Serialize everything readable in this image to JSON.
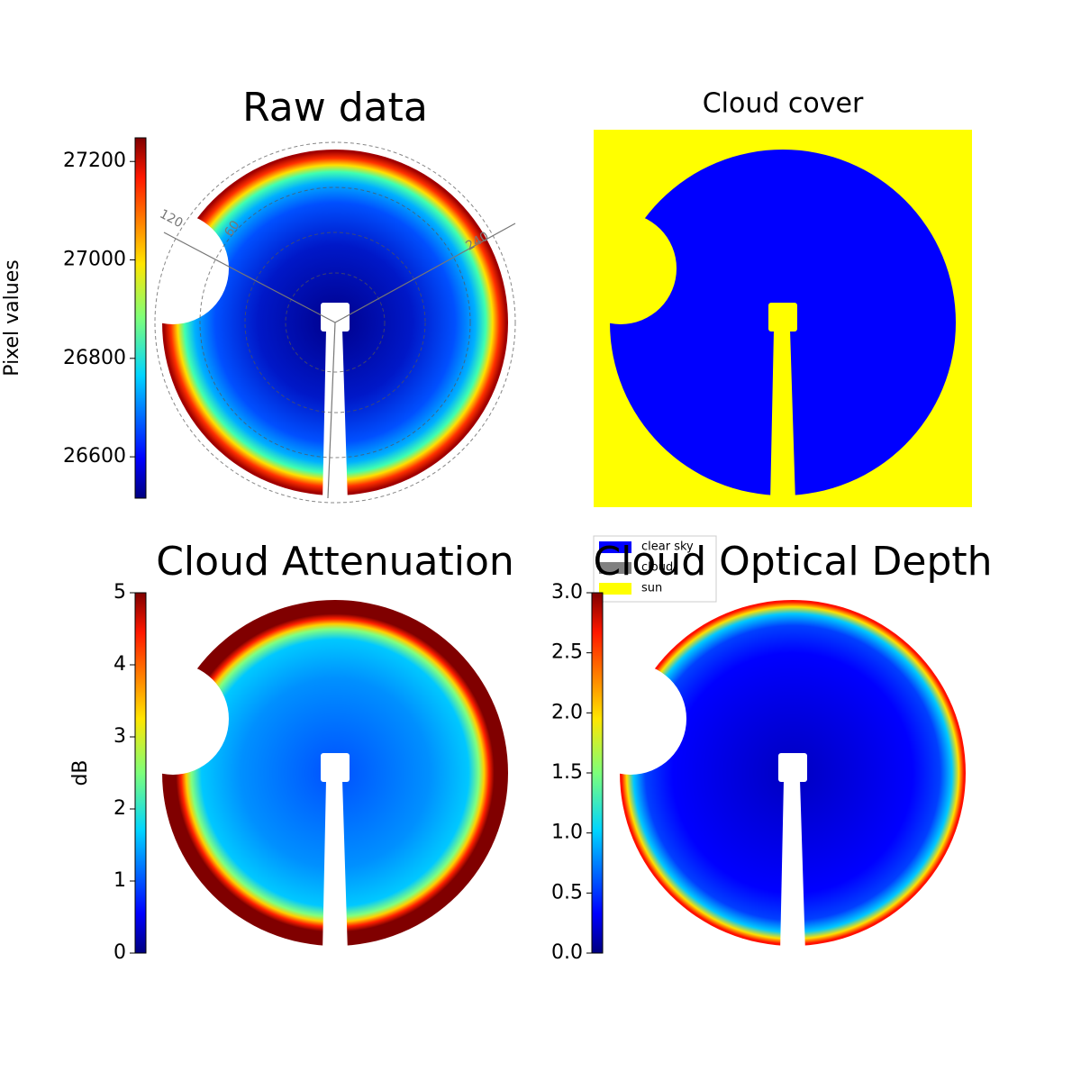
{
  "chart_data": [
    {
      "type": "image",
      "title": "Raw data",
      "colorbar_label": "Pixel values",
      "ylim": [
        26516,
        27248
      ],
      "yticks": [
        26600,
        26800,
        27000,
        27200
      ],
      "colormap": "jet",
      "annotations": [
        "120",
        "60",
        "240"
      ]
    },
    {
      "type": "categorical-image",
      "title": "Cloud cover",
      "legend": [
        {
          "name": "clear sky",
          "color": "#0000ff"
        },
        {
          "name": "cloud",
          "color": "#808080"
        },
        {
          "name": "sun",
          "color": "#ffff00"
        }
      ]
    },
    {
      "type": "image",
      "title": "Cloud Attenuation",
      "colorbar_label": "dB",
      "ylim": [
        0,
        5
      ],
      "yticks": [
        0,
        1,
        2,
        3,
        4,
        5
      ],
      "colormap": "jet"
    },
    {
      "type": "image",
      "title": "Cloud Optical Depth",
      "ylim": [
        0,
        3
      ],
      "yticks": [
        {
          "value": 0,
          "label": "0.0"
        },
        {
          "value": 0.5,
          "label": "0.5"
        },
        {
          "value": 1,
          "label": "1.0"
        },
        {
          "value": 1.5,
          "label": "1.5"
        },
        {
          "value": 2,
          "label": "2.0"
        },
        {
          "value": 2.5,
          "label": "2.5"
        },
        {
          "value": 3,
          "label": "3.0"
        }
      ],
      "colormap": "jet"
    }
  ]
}
